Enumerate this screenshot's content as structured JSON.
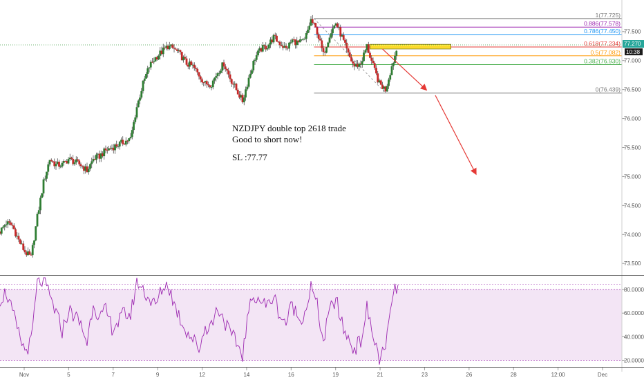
{
  "chart_data": [
    {
      "type": "candlestick",
      "symbol": "NZDJPY",
      "price_axis": {
        "ticks": [
          77.5,
          77.0,
          76.5,
          76.0,
          75.5,
          75.0,
          74.5,
          74.0,
          73.5
        ],
        "tick_labels": [
          "77.500",
          "77.000",
          "76.500",
          "76.000",
          "75.500",
          "75.000",
          "74.500",
          "74.000",
          "73.500"
        ],
        "range": [
          73.3,
          77.95
        ]
      },
      "last_price": {
        "value": 77.27,
        "label": "77.270",
        "countdown": "10:38",
        "color": "#26a69a"
      },
      "x_axis": {
        "ticks": [
          "Nov",
          "5",
          "7",
          "9",
          "12",
          "14",
          "16",
          "19",
          "21",
          "23",
          "26",
          "28",
          "12:00",
          "Dec"
        ],
        "range": [
          0,
          100
        ]
      },
      "fib_levels": [
        {
          "ratio": "1",
          "value": 77.725,
          "label": "1(77.725)",
          "color": "#787878"
        },
        {
          "ratio": "0.886",
          "value": 77.578,
          "label": "0.886(77.578)",
          "color": "#9c27b0"
        },
        {
          "ratio": "0.786",
          "value": 77.45,
          "label": "0.786(77.450)",
          "color": "#2196f3"
        },
        {
          "ratio": "0.618",
          "value": 77.234,
          "label": "0.618(77.234)",
          "color": "#e53935"
        },
        {
          "ratio": "0.5",
          "value": 77.082,
          "label": "0.5(77.082)",
          "color": "#ff9800"
        },
        {
          "ratio": "0.382",
          "value": 76.93,
          "label": "0.382(76.930)",
          "color": "#4caf50"
        },
        {
          "ratio": "0",
          "value": 76.439,
          "label": "0(76.439)",
          "color": "#787878"
        }
      ],
      "resistance_zone": {
        "from": 77.2,
        "to": 77.28,
        "color": "#ffe600"
      },
      "forecast_arrows": [
        {
          "from": [
            61.5,
            77.2
          ],
          "to": [
            68.5,
            76.5
          ]
        },
        {
          "from": [
            70,
            76.4
          ],
          "to": [
            76.5,
            75.05
          ]
        }
      ],
      "close_series": [
        [
          0,
          74.05
        ],
        [
          1,
          74.2
        ],
        [
          2,
          74.15
        ],
        [
          3,
          73.9
        ],
        [
          4,
          73.7
        ],
        [
          5,
          73.6
        ],
        [
          6,
          74.3
        ],
        [
          7,
          74.9
        ],
        [
          8,
          75.3
        ],
        [
          9,
          75.2
        ],
        [
          10,
          75.2
        ],
        [
          11,
          75.3
        ],
        [
          12,
          75.25
        ],
        [
          13,
          75.2
        ],
        [
          14,
          75.1
        ],
        [
          15,
          75.3
        ],
        [
          16,
          75.35
        ],
        [
          17,
          75.45
        ],
        [
          18,
          75.5
        ],
        [
          19,
          75.55
        ],
        [
          20,
          75.6
        ],
        [
          21,
          75.65
        ],
        [
          22,
          76.2
        ],
        [
          23,
          76.6
        ],
        [
          24,
          76.9
        ],
        [
          25,
          77.05
        ],
        [
          26,
          77.15
        ],
        [
          27,
          77.25
        ],
        [
          28,
          77.2
        ],
        [
          29,
          77.1
        ],
        [
          30,
          76.95
        ],
        [
          31,
          76.9
        ],
        [
          32,
          76.75
        ],
        [
          33,
          76.6
        ],
        [
          34,
          76.6
        ],
        [
          35,
          76.8
        ],
        [
          36,
          76.95
        ],
        [
          37,
          76.7
        ],
        [
          38,
          76.5
        ],
        [
          39,
          76.3
        ],
        [
          40,
          76.7
        ],
        [
          41,
          77.05
        ],
        [
          42,
          77.2
        ],
        [
          43,
          77.25
        ],
        [
          44,
          77.4
        ],
        [
          45,
          77.3
        ],
        [
          46,
          77.2
        ],
        [
          47,
          77.35
        ],
        [
          48,
          77.3
        ],
        [
          49,
          77.35
        ],
        [
          50,
          77.7
        ],
        [
          51,
          77.5
        ],
        [
          52,
          77.1
        ],
        [
          53,
          77.45
        ],
        [
          54,
          77.65
        ],
        [
          55,
          77.4
        ],
        [
          56,
          77.1
        ],
        [
          57,
          76.9
        ],
        [
          58,
          76.95
        ],
        [
          59,
          77.25
        ],
        [
          60,
          76.9
        ],
        [
          61,
          76.6
        ],
        [
          62,
          76.5
        ],
        [
          63,
          76.9
        ],
        [
          64,
          77.27
        ]
      ]
    },
    {
      "type": "line",
      "indicator": "RSI",
      "y_axis": {
        "ticks": [
          80,
          60,
          40,
          20
        ],
        "tick_labels": [
          "80.0000",
          "60.0000",
          "40.0000",
          "20.0000"
        ],
        "range": [
          15,
          90
        ]
      },
      "levels": [
        80,
        20
      ],
      "band_color": "#f3e5f5",
      "line_color": "#9c27b0",
      "values": [
        [
          0,
          72
        ],
        [
          1,
          78
        ],
        [
          2,
          60
        ],
        [
          3,
          42
        ],
        [
          4,
          28
        ],
        [
          5,
          35
        ],
        [
          6,
          85
        ],
        [
          7,
          88
        ],
        [
          8,
          74
        ],
        [
          9,
          60
        ],
        [
          10,
          45
        ],
        [
          11,
          62
        ],
        [
          12,
          58
        ],
        [
          13,
          50
        ],
        [
          14,
          35
        ],
        [
          15,
          70
        ],
        [
          16,
          55
        ],
        [
          17,
          62
        ],
        [
          18,
          48
        ],
        [
          19,
          52
        ],
        [
          20,
          60
        ],
        [
          21,
          58
        ],
        [
          22,
          88
        ],
        [
          23,
          80
        ],
        [
          24,
          72
        ],
        [
          25,
          66
        ],
        [
          26,
          80
        ],
        [
          27,
          85
        ],
        [
          28,
          68
        ],
        [
          29,
          55
        ],
        [
          30,
          45
        ],
        [
          31,
          38
        ],
        [
          32,
          30
        ],
        [
          33,
          48
        ],
        [
          34,
          50
        ],
        [
          35,
          65
        ],
        [
          36,
          55
        ],
        [
          37,
          42
        ],
        [
          38,
          35
        ],
        [
          39,
          25
        ],
        [
          40,
          62
        ],
        [
          41,
          76
        ],
        [
          42,
          70
        ],
        [
          43,
          66
        ],
        [
          44,
          75
        ],
        [
          45,
          58
        ],
        [
          46,
          52
        ],
        [
          47,
          68
        ],
        [
          48,
          55
        ],
        [
          49,
          60
        ],
        [
          50,
          82
        ],
        [
          51,
          66
        ],
        [
          52,
          35
        ],
        [
          53,
          62
        ],
        [
          54,
          72
        ],
        [
          55,
          50
        ],
        [
          56,
          38
        ],
        [
          57,
          30
        ],
        [
          58,
          36
        ],
        [
          59,
          64
        ],
        [
          60,
          40
        ],
        [
          61,
          22
        ],
        [
          62,
          28
        ],
        [
          63,
          72
        ],
        [
          64,
          84
        ]
      ]
    }
  ],
  "annotation": {
    "line1": "NZDJPY double top 2618 trade",
    "line2": "Good to short now!",
    "line3": "SL :77.77"
  }
}
